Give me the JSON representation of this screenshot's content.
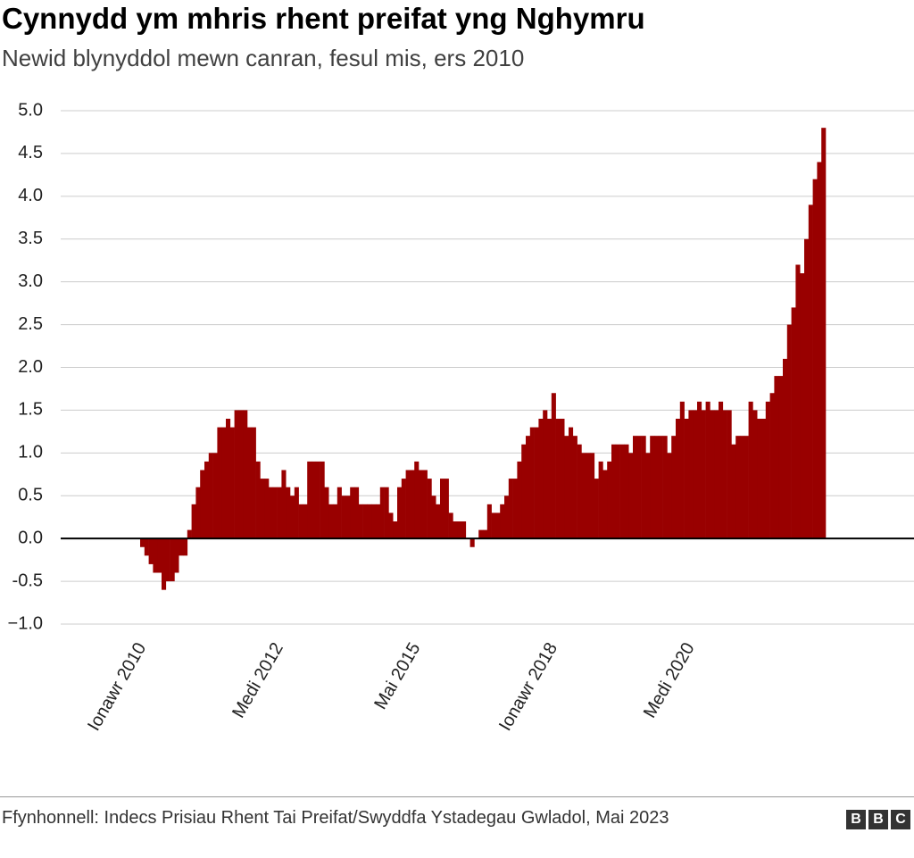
{
  "chart_data": {
    "type": "bar",
    "title": "Cynnydd ym mhris rhent preifat yng Nghymru",
    "subtitle": "Newid blynyddol mewn canran, fesul mis, ers 2010",
    "source": "Ffynhonnell: Indecs Prisiau Rhent Tai Preifat/Swyddfa Ystadegau Gwladol, Mai 2023",
    "logo": [
      "B",
      "B",
      "C"
    ],
    "color": "#990000",
    "grid": true,
    "ylim": [
      -1.0,
      5.0
    ],
    "yticks": [
      {
        "value": -1.0,
        "label": "−1.0"
      },
      {
        "value": -0.5,
        "label": "-0.5"
      },
      {
        "value": 0,
        "label": "0.0"
      },
      0.5,
      {
        "value": 1.0,
        "label": "1.0"
      },
      1.5,
      {
        "value": 2.0,
        "label": "2.0"
      },
      2.5,
      {
        "value": 3.0,
        "label": "3.0"
      },
      3.5,
      {
        "value": 4.0,
        "label": "4.0"
      },
      4.5,
      {
        "value": 5.0,
        "label": "5.0"
      }
    ],
    "categories": [
      "Ionawr 2010",
      null,
      null,
      null,
      null,
      null,
      null,
      null,
      null,
      null,
      null,
      null,
      null,
      null,
      null,
      null,
      null,
      null,
      null,
      null,
      null,
      null,
      null,
      null,
      null,
      null,
      null,
      null,
      null,
      null,
      null,
      null,
      "Medi 2012",
      null,
      null,
      null,
      null,
      null,
      null,
      null,
      null,
      null,
      null,
      null,
      null,
      null,
      null,
      null,
      null,
      null,
      null,
      null,
      null,
      null,
      null,
      null,
      null,
      null,
      null,
      null,
      null,
      null,
      null,
      null,
      "Mai 2015",
      null,
      null,
      null,
      null,
      null,
      null,
      null,
      null,
      null,
      null,
      null,
      null,
      null,
      null,
      null,
      null,
      null,
      null,
      null,
      null,
      null,
      null,
      null,
      null,
      null,
      null,
      null,
      null,
      null,
      null,
      null,
      "Ionawr 2018",
      null,
      null,
      null,
      null,
      null,
      null,
      null,
      null,
      null,
      null,
      null,
      null,
      null,
      null,
      null,
      null,
      null,
      null,
      null,
      null,
      null,
      null,
      null,
      null,
      null,
      null,
      null,
      null,
      null,
      null,
      null,
      "Medi 2020",
      null,
      null,
      null,
      null,
      null,
      null,
      null,
      null,
      null,
      null,
      null,
      null,
      null,
      null,
      null,
      null,
      null,
      null,
      null,
      null,
      null,
      null,
      null,
      null,
      null,
      null,
      null,
      null,
      null,
      null,
      null
    ],
    "values": [
      -0.1,
      -0.2,
      -0.3,
      -0.4,
      -0.4,
      -0.6,
      -0.5,
      -0.5,
      -0.4,
      -0.2,
      -0.2,
      0.1,
      0.4,
      0.6,
      0.8,
      0.9,
      1.0,
      1.0,
      1.3,
      1.3,
      1.4,
      1.3,
      1.5,
      1.5,
      1.5,
      1.3,
      1.3,
      0.9,
      0.7,
      0.7,
      0.6,
      0.6,
      0.6,
      0.8,
      0.6,
      0.5,
      0.6,
      0.4,
      0.4,
      0.9,
      0.9,
      0.9,
      0.9,
      0.6,
      0.4,
      0.4,
      0.6,
      0.5,
      0.5,
      0.6,
      0.6,
      0.4,
      0.4,
      0.4,
      0.4,
      0.4,
      0.6,
      0.6,
      0.3,
      0.2,
      0.6,
      0.7,
      0.8,
      0.8,
      0.9,
      0.8,
      0.8,
      0.7,
      0.5,
      0.4,
      0.7,
      0.7,
      0.3,
      0.2,
      0.2,
      0.2,
      0.0,
      -0.1,
      0.0,
      0.1,
      0.1,
      0.4,
      0.3,
      0.3,
      0.4,
      0.5,
      0.7,
      0.7,
      0.9,
      1.1,
      1.2,
      1.3,
      1.3,
      1.4,
      1.5,
      1.4,
      1.7,
      1.4,
      1.4,
      1.2,
      1.3,
      1.2,
      1.1,
      1.0,
      1.0,
      1.0,
      0.7,
      0.9,
      0.8,
      0.9,
      1.1,
      1.1,
      1.1,
      1.1,
      1.0,
      1.2,
      1.2,
      1.2,
      1.0,
      1.2,
      1.2,
      1.2,
      1.2,
      1.0,
      1.2,
      1.4,
      1.6,
      1.4,
      1.5,
      1.5,
      1.6,
      1.5,
      1.6,
      1.5,
      1.5,
      1.6,
      1.5,
      1.5,
      1.1,
      1.2,
      1.2,
      1.2,
      1.6,
      1.5,
      1.4,
      1.4,
      1.6,
      1.7,
      1.9,
      1.9,
      2.1,
      2.5,
      2.7,
      3.2,
      3.1,
      3.5,
      3.9,
      4.2,
      4.4,
      4.8
    ]
  }
}
